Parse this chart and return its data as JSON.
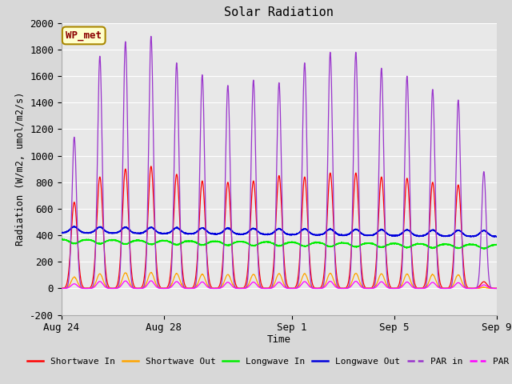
{
  "title": "Solar Radiation",
  "ylabel": "Radiation (W/m2, umol/m2/s)",
  "xlabel": "Time",
  "ylim": [
    -200,
    2000
  ],
  "annotation": "WP_met",
  "fig_bg_color": "#d8d8d8",
  "plot_bg_color": "#e8e8e8",
  "grid_color": "#ffffff",
  "colors": {
    "shortwave_in": "#ff0000",
    "shortwave_out": "#ffa500",
    "longwave_in": "#00ee00",
    "longwave_out": "#0000dd",
    "par_in": "#9933cc",
    "par_out": "#ff00ff"
  },
  "legend_labels": [
    "Shortwave In",
    "Shortwave Out",
    "Longwave In",
    "Longwave Out",
    "PAR in",
    "PAR out"
  ],
  "xtick_labels": [
    "Aug 24",
    "Aug 28",
    "Sep 1",
    "Sep 5",
    "Sep 9"
  ],
  "xtick_positions": [
    0,
    4,
    9,
    13,
    17
  ],
  "ytick_values": [
    -200,
    0,
    200,
    400,
    600,
    800,
    1000,
    1200,
    1400,
    1600,
    1800,
    2000
  ],
  "num_days": 17,
  "points_per_day": 288,
  "shortwave_in_peaks": [
    650,
    840,
    900,
    920,
    860,
    810,
    800,
    810,
    850,
    840,
    870,
    870,
    840,
    830,
    800,
    780,
    50
  ],
  "par_in_peaks": [
    1140,
    1750,
    1860,
    1900,
    1700,
    1610,
    1530,
    1570,
    1550,
    1700,
    1780,
    1780,
    1660,
    1600,
    1500,
    1420,
    880
  ],
  "lw_in_mean": 370,
  "lw_in_amplitude": 30,
  "lw_out_mean": 420,
  "lw_out_amplitude": 45,
  "sw_sigma": 0.12,
  "par_sigma": 0.09
}
